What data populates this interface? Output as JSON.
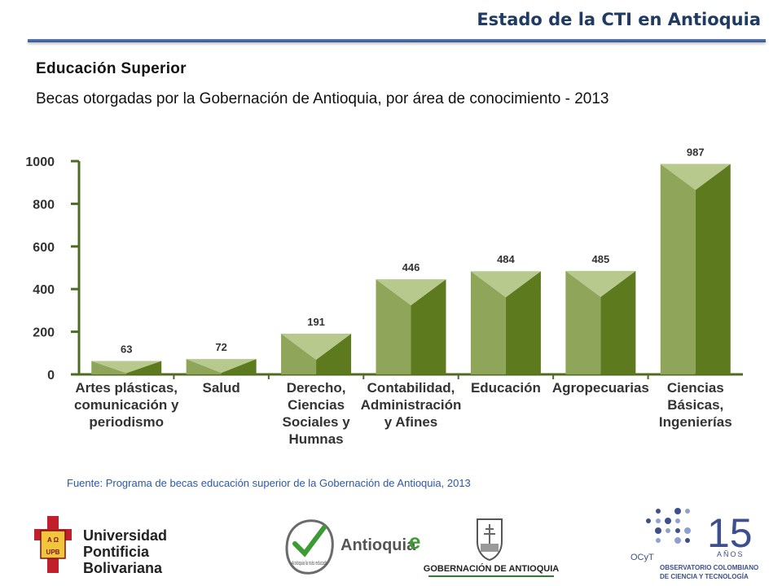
{
  "header": {
    "title": "Estado de la CTI en Antioquia"
  },
  "section_title": "Educación Superior",
  "chart_data": {
    "type": "bar",
    "title": "Becas otorgadas por la Gobernación de Antioquia, por área de conocimiento - 2013",
    "categories": [
      [
        "Artes plásticas,",
        "comunicación y",
        "periodismo"
      ],
      [
        "Salud"
      ],
      [
        "Derecho,",
        "Ciencias",
        "Sociales y",
        "Humnas"
      ],
      [
        "Contabilidad,",
        "Administración",
        "y Afines"
      ],
      [
        "Educación"
      ],
      [
        "Agropecuarias"
      ],
      [
        "Ciencias",
        "Básicas,",
        "Ingenierías"
      ]
    ],
    "values": [
      63,
      72,
      191,
      446,
      484,
      485,
      987
    ],
    "data_labels": [
      "63",
      "72",
      "191",
      "446",
      "484",
      "485",
      "987"
    ],
    "ylim": [
      0,
      1000
    ],
    "yticks": [
      0,
      200,
      400,
      600,
      800,
      1000
    ],
    "grid": false,
    "legend": "none",
    "colors": {
      "bar_light": "#8fa65a",
      "bar_dark": "#5e7a1f",
      "bar_top": "#b7c98c",
      "axis": "#4f6b22"
    }
  },
  "source": "Fuente: Programa de becas educación superior de la Gobernación de Antioquia, 2013",
  "logos": {
    "upb": {
      "line1": "Universidad",
      "line2": "Pontificia",
      "line3": "Bolivariana",
      "shield_top": "A Ω",
      "shield_bottom": "UPB"
    },
    "antioquia": {
      "badge": "Antioquia la más educada",
      "wordmark": "Antioquia",
      "mark": "e"
    },
    "gobernacion": {
      "text": "GOBERNACIÓN DE ANTIOQUIA"
    },
    "ocyt": {
      "number": "15",
      "years": "AÑOS",
      "acronym": "OCyT",
      "line1": "OBSERVATORIO COLOMBIANO",
      "line2": "DE CIENCIA Y TECNOLOGÍA"
    }
  }
}
